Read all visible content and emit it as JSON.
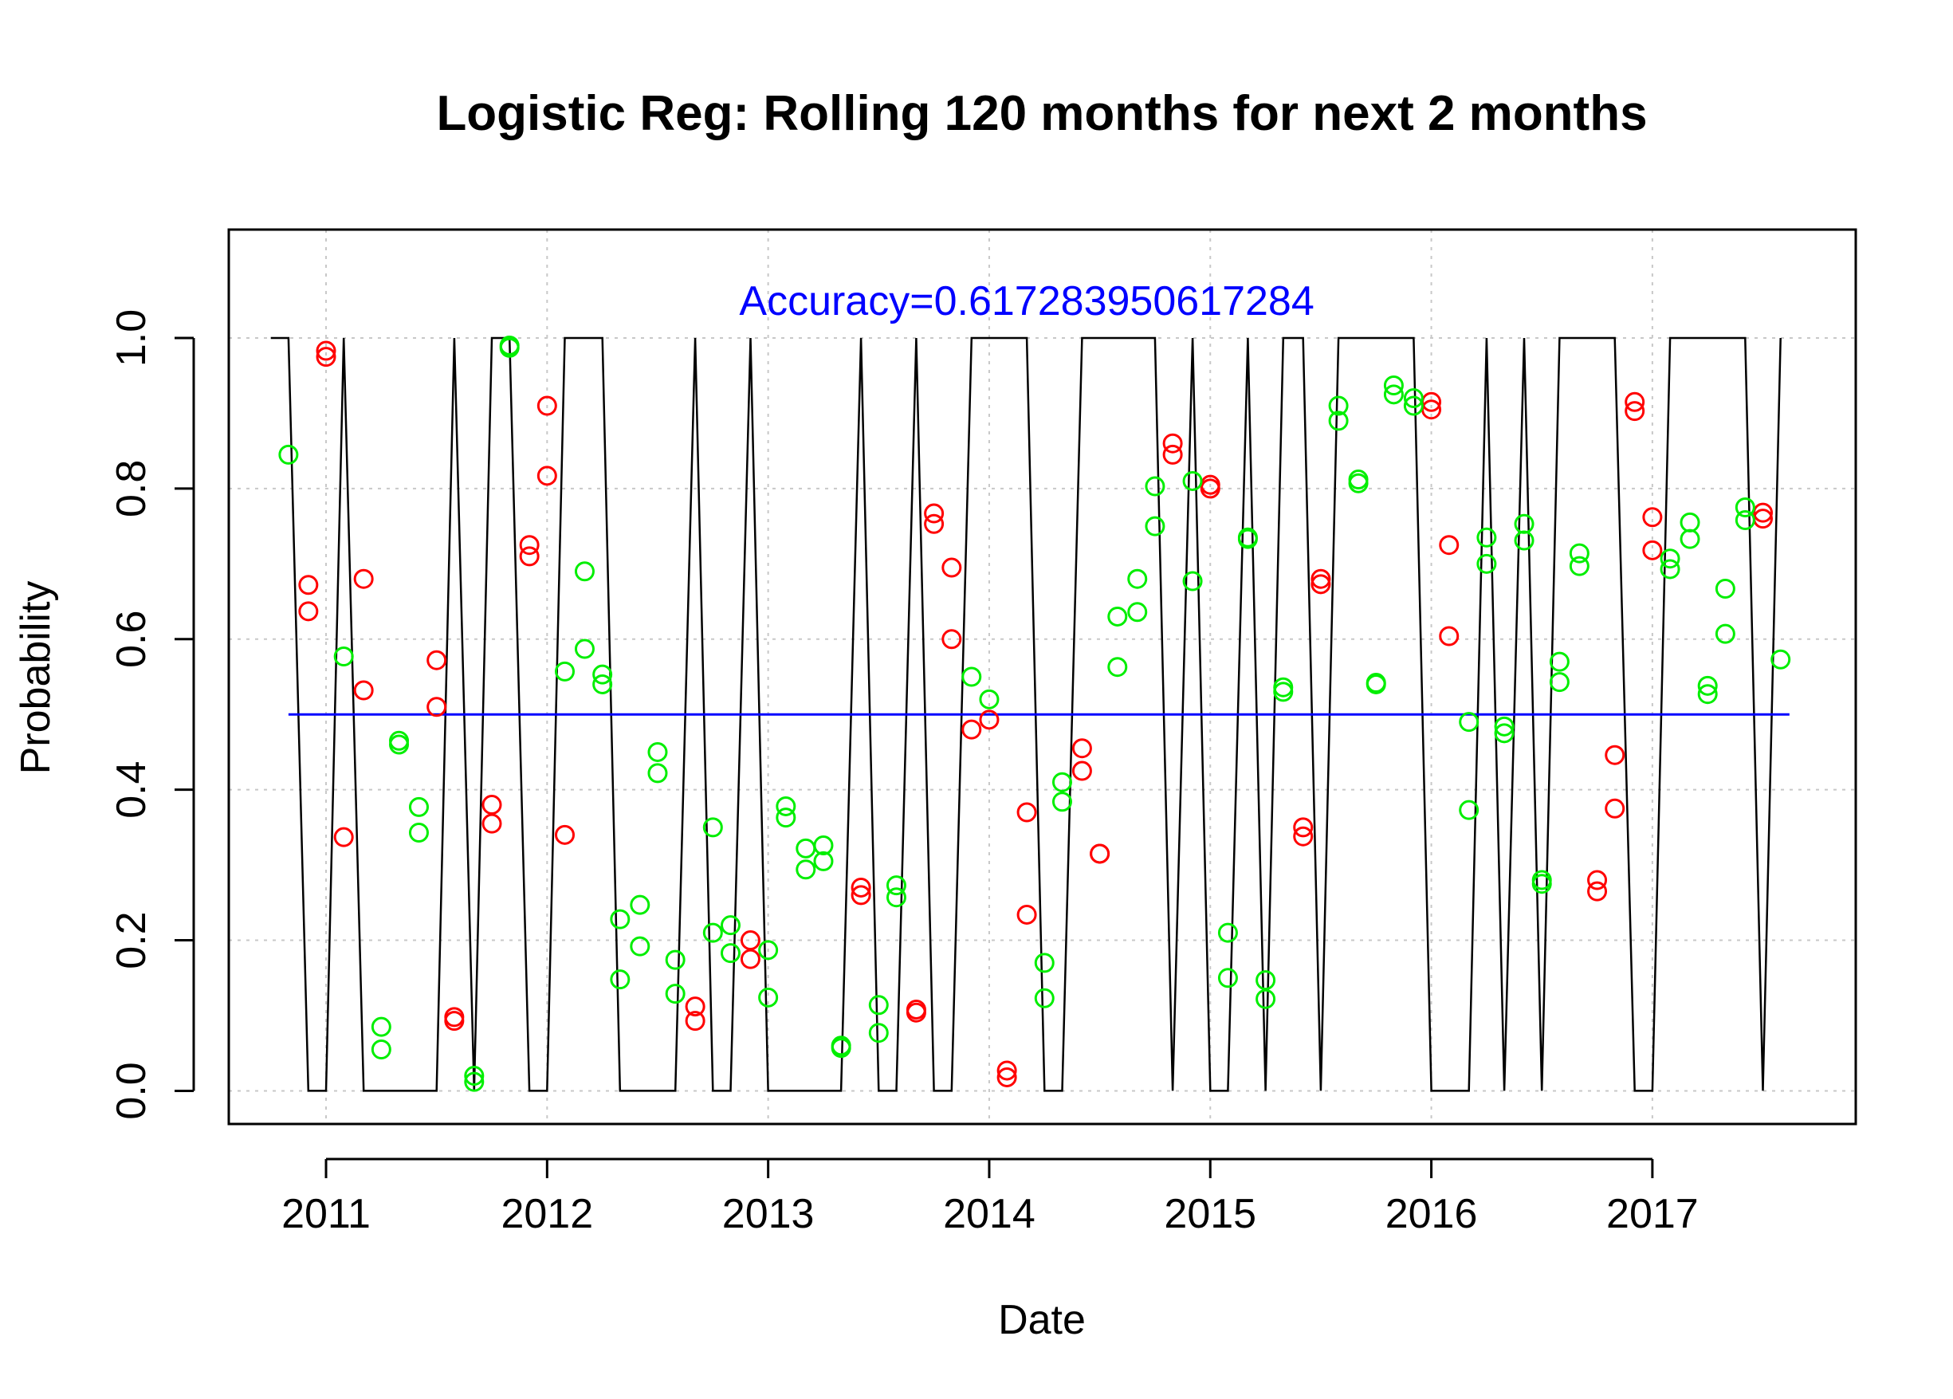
{
  "chart_data": {
    "type": "scatter",
    "title": "Logistic Reg: Rolling 120 months for next 2 months",
    "xlabel": "Date",
    "ylabel": "Probability",
    "xlim": [
      2010.56,
      2017.92
    ],
    "ylim": [
      -0.044,
      1.144
    ],
    "x_ticks": [
      2011,
      2012,
      2013,
      2014,
      2015,
      2016,
      2017
    ],
    "x_tick_labels": [
      "2011",
      "2012",
      "2013",
      "2014",
      "2015",
      "2016",
      "2017"
    ],
    "y_ticks": [
      0,
      0.2,
      0.4,
      0.6,
      0.8,
      1.0
    ],
    "y_tick_labels": [
      "0.0",
      "0.2",
      "0.4",
      "0.6",
      "0.8",
      "1.0"
    ],
    "grid": true,
    "annotation": {
      "text": "Accuracy=0.617283950617284",
      "x": 2014.17,
      "y": 1.05
    },
    "threshold": {
      "value": 0.5,
      "x_start": 2010.83,
      "x_end": 2017.62
    },
    "colors": {
      "red": "#ff0000",
      "green": "#00ee00",
      "threshold": "#0000ff",
      "annotation": "#0000ff",
      "line": "#000000",
      "grid": "#c8c8c8",
      "axis": "#000000"
    },
    "series": [
      {
        "name": "",
        "color": "red",
        "marker": "open-circle",
        "points": [
          [
            2010.92,
            0.672
          ],
          [
            2010.92,
            0.637
          ],
          [
            2011.0,
            0.983
          ],
          [
            2011.0,
            0.975
          ],
          [
            2011.08,
            0.337
          ],
          [
            2011.17,
            0.68
          ],
          [
            2011.17,
            0.532
          ],
          [
            2011.5,
            0.572
          ],
          [
            2011.5,
            0.51
          ],
          [
            2011.58,
            0.098
          ],
          [
            2011.58,
            0.093
          ],
          [
            2011.75,
            0.38
          ],
          [
            2011.75,
            0.355
          ],
          [
            2011.92,
            0.725
          ],
          [
            2011.92,
            0.71
          ],
          [
            2012.0,
            0.91
          ],
          [
            2012.0,
            0.817
          ],
          [
            2012.08,
            0.34
          ],
          [
            2012.67,
            0.112
          ],
          [
            2012.67,
            0.093
          ],
          [
            2012.92,
            0.2
          ],
          [
            2012.92,
            0.175
          ],
          [
            2013.42,
            0.27
          ],
          [
            2013.42,
            0.26
          ],
          [
            2013.67,
            0.108
          ],
          [
            2013.67,
            0.104
          ],
          [
            2013.75,
            0.767
          ],
          [
            2013.75,
            0.753
          ],
          [
            2013.83,
            0.695
          ],
          [
            2013.83,
            0.6
          ],
          [
            2013.92,
            0.48
          ],
          [
            2014.0,
            0.493
          ],
          [
            2014.08,
            0.027
          ],
          [
            2014.08,
            0.018
          ],
          [
            2014.17,
            0.37
          ],
          [
            2014.17,
            0.234
          ],
          [
            2014.42,
            0.455
          ],
          [
            2014.42,
            0.425
          ],
          [
            2014.5,
            0.315
          ],
          [
            2014.5,
            0.315
          ],
          [
            2014.83,
            0.86
          ],
          [
            2014.83,
            0.845
          ],
          [
            2015.0,
            0.805
          ],
          [
            2015.0,
            0.8
          ],
          [
            2015.42,
            0.35
          ],
          [
            2015.42,
            0.338
          ],
          [
            2015.5,
            0.68
          ],
          [
            2015.5,
            0.673
          ],
          [
            2016.0,
            0.915
          ],
          [
            2016.0,
            0.905
          ],
          [
            2016.08,
            0.725
          ],
          [
            2016.08,
            0.604
          ],
          [
            2016.75,
            0.28
          ],
          [
            2016.75,
            0.265
          ],
          [
            2016.83,
            0.446
          ],
          [
            2016.83,
            0.375
          ],
          [
            2016.92,
            0.915
          ],
          [
            2016.92,
            0.903
          ],
          [
            2017.0,
            0.762
          ],
          [
            2017.0,
            0.718
          ],
          [
            2017.5,
            0.768
          ],
          [
            2017.5,
            0.76
          ]
        ]
      },
      {
        "name": "",
        "color": "green",
        "marker": "open-circle",
        "points": [
          [
            2010.83,
            0.845
          ],
          [
            2011.08,
            0.577
          ],
          [
            2011.25,
            0.085
          ],
          [
            2011.25,
            0.055
          ],
          [
            2011.33,
            0.465
          ],
          [
            2011.33,
            0.46
          ],
          [
            2011.42,
            0.377
          ],
          [
            2011.42,
            0.343
          ],
          [
            2011.67,
            0.02
          ],
          [
            2011.67,
            0.012
          ],
          [
            2011.83,
            0.99
          ],
          [
            2011.83,
            0.987
          ],
          [
            2012.08,
            0.557
          ],
          [
            2012.17,
            0.69
          ],
          [
            2012.17,
            0.587
          ],
          [
            2012.25,
            0.553
          ],
          [
            2012.25,
            0.54
          ],
          [
            2012.33,
            0.228
          ],
          [
            2012.33,
            0.148
          ],
          [
            2012.42,
            0.247
          ],
          [
            2012.42,
            0.192
          ],
          [
            2012.5,
            0.45
          ],
          [
            2012.5,
            0.422
          ],
          [
            2012.58,
            0.174
          ],
          [
            2012.58,
            0.129
          ],
          [
            2012.75,
            0.35
          ],
          [
            2012.75,
            0.21
          ],
          [
            2012.83,
            0.22
          ],
          [
            2012.83,
            0.183
          ],
          [
            2013.0,
            0.187
          ],
          [
            2013.0,
            0.124
          ],
          [
            2013.08,
            0.378
          ],
          [
            2013.08,
            0.363
          ],
          [
            2013.17,
            0.322
          ],
          [
            2013.17,
            0.294
          ],
          [
            2013.25,
            0.326
          ],
          [
            2013.25,
            0.305
          ],
          [
            2013.33,
            0.06
          ],
          [
            2013.33,
            0.057
          ],
          [
            2013.5,
            0.114
          ],
          [
            2013.5,
            0.077
          ],
          [
            2013.58,
            0.273
          ],
          [
            2013.58,
            0.257
          ],
          [
            2013.92,
            0.55
          ],
          [
            2014.0,
            0.52
          ],
          [
            2014.25,
            0.17
          ],
          [
            2014.25,
            0.123
          ],
          [
            2014.33,
            0.41
          ],
          [
            2014.33,
            0.384
          ],
          [
            2014.58,
            0.63
          ],
          [
            2014.58,
            0.563
          ],
          [
            2014.67,
            0.68
          ],
          [
            2014.67,
            0.636
          ],
          [
            2014.75,
            0.803
          ],
          [
            2014.75,
            0.75
          ],
          [
            2014.92,
            0.81
          ],
          [
            2014.92,
            0.677
          ],
          [
            2015.08,
            0.21
          ],
          [
            2015.08,
            0.15
          ],
          [
            2015.17,
            0.735
          ],
          [
            2015.17,
            0.733
          ],
          [
            2015.25,
            0.147
          ],
          [
            2015.25,
            0.122
          ],
          [
            2015.33,
            0.536
          ],
          [
            2015.33,
            0.53
          ],
          [
            2015.58,
            0.91
          ],
          [
            2015.58,
            0.89
          ],
          [
            2015.67,
            0.812
          ],
          [
            2015.67,
            0.807
          ],
          [
            2015.75,
            0.542
          ],
          [
            2015.75,
            0.54
          ],
          [
            2015.83,
            0.937
          ],
          [
            2015.83,
            0.925
          ],
          [
            2015.92,
            0.92
          ],
          [
            2015.92,
            0.91
          ],
          [
            2016.17,
            0.49
          ],
          [
            2016.17,
            0.373
          ],
          [
            2016.25,
            0.735
          ],
          [
            2016.25,
            0.7
          ],
          [
            2016.33,
            0.484
          ],
          [
            2016.33,
            0.475
          ],
          [
            2016.42,
            0.753
          ],
          [
            2016.42,
            0.731
          ],
          [
            2016.5,
            0.28
          ],
          [
            2016.5,
            0.275
          ],
          [
            2016.58,
            0.57
          ],
          [
            2016.58,
            0.543
          ],
          [
            2016.67,
            0.714
          ],
          [
            2016.67,
            0.697
          ],
          [
            2017.08,
            0.707
          ],
          [
            2017.08,
            0.693
          ],
          [
            2017.17,
            0.755
          ],
          [
            2017.17,
            0.733
          ],
          [
            2017.25,
            0.538
          ],
          [
            2017.25,
            0.527
          ],
          [
            2017.33,
            0.667
          ],
          [
            2017.33,
            0.607
          ],
          [
            2017.42,
            0.775
          ],
          [
            2017.42,
            0.758
          ],
          [
            2017.58,
            0.573
          ]
        ]
      },
      {
        "name": "",
        "color": "line",
        "marker": "line",
        "points": [
          [
            2010.75,
            1
          ],
          [
            2010.83,
            1
          ],
          [
            2010.92,
            0
          ],
          [
            2011.0,
            0
          ],
          [
            2011.08,
            1
          ],
          [
            2011.17,
            0
          ],
          [
            2011.25,
            0
          ],
          [
            2011.33,
            0
          ],
          [
            2011.42,
            0
          ],
          [
            2011.5,
            0
          ],
          [
            2011.58,
            1
          ],
          [
            2011.67,
            0
          ],
          [
            2011.75,
            1
          ],
          [
            2011.83,
            1
          ],
          [
            2011.92,
            0
          ],
          [
            2012.0,
            0
          ],
          [
            2012.08,
            1
          ],
          [
            2012.17,
            1
          ],
          [
            2012.25,
            1
          ],
          [
            2012.33,
            0
          ],
          [
            2012.42,
            0
          ],
          [
            2012.5,
            0
          ],
          [
            2012.58,
            0
          ],
          [
            2012.67,
            1
          ],
          [
            2012.75,
            0
          ],
          [
            2012.83,
            0
          ],
          [
            2012.92,
            1
          ],
          [
            2013.0,
            0
          ],
          [
            2013.08,
            0
          ],
          [
            2013.17,
            0
          ],
          [
            2013.25,
            0
          ],
          [
            2013.33,
            0
          ],
          [
            2013.42,
            1
          ],
          [
            2013.5,
            0
          ],
          [
            2013.58,
            0
          ],
          [
            2013.67,
            1
          ],
          [
            2013.75,
            0
          ],
          [
            2013.83,
            0
          ],
          [
            2013.92,
            1
          ],
          [
            2014.0,
            1
          ],
          [
            2014.08,
            1
          ],
          [
            2014.17,
            1
          ],
          [
            2014.25,
            0
          ],
          [
            2014.33,
            0
          ],
          [
            2014.42,
            1
          ],
          [
            2014.5,
            1
          ],
          [
            2014.58,
            1
          ],
          [
            2014.67,
            1
          ],
          [
            2014.75,
            1
          ],
          [
            2014.83,
            0
          ],
          [
            2014.92,
            1
          ],
          [
            2015.0,
            0
          ],
          [
            2015.08,
            0
          ],
          [
            2015.17,
            1
          ],
          [
            2015.25,
            0
          ],
          [
            2015.33,
            1
          ],
          [
            2015.42,
            1
          ],
          [
            2015.5,
            0
          ],
          [
            2015.58,
            1
          ],
          [
            2015.67,
            1
          ],
          [
            2015.75,
            1
          ],
          [
            2015.83,
            1
          ],
          [
            2015.92,
            1
          ],
          [
            2016.0,
            0
          ],
          [
            2016.08,
            0
          ],
          [
            2016.17,
            0
          ],
          [
            2016.25,
            1
          ],
          [
            2016.33,
            0
          ],
          [
            2016.42,
            1
          ],
          [
            2016.5,
            0
          ],
          [
            2016.58,
            1
          ],
          [
            2016.67,
            1
          ],
          [
            2016.75,
            1
          ],
          [
            2016.83,
            1
          ],
          [
            2016.92,
            0
          ],
          [
            2017.0,
            0
          ],
          [
            2017.08,
            1
          ],
          [
            2017.17,
            1
          ],
          [
            2017.25,
            1
          ],
          [
            2017.33,
            1
          ],
          [
            2017.42,
            1
          ],
          [
            2017.5,
            0
          ],
          [
            2017.58,
            1
          ]
        ]
      }
    ]
  }
}
